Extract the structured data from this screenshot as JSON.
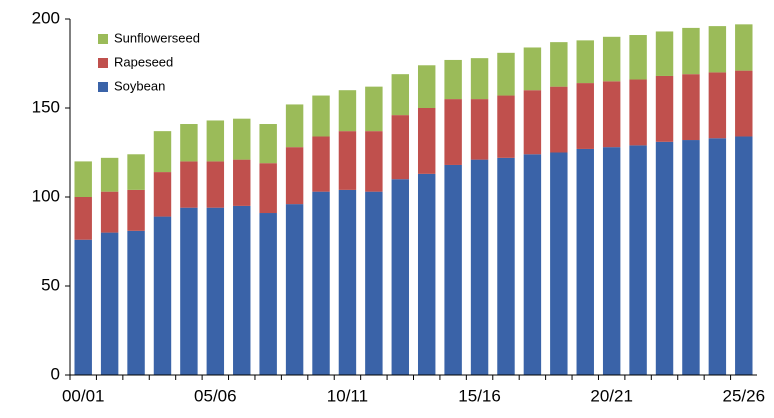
{
  "chart_data": {
    "type": "stacked_bar",
    "categories": [
      "00/01",
      null,
      null,
      null,
      null,
      "05/06",
      null,
      null,
      null,
      null,
      "10/11",
      null,
      null,
      null,
      null,
      "15/16",
      null,
      null,
      null,
      null,
      "20/21",
      null,
      null,
      null,
      null,
      "25/26"
    ],
    "series": [
      {
        "name": "Soybean",
        "color": "#3a63a8",
        "values": [
          76,
          80,
          81,
          89,
          94,
          94,
          95,
          91,
          96,
          103,
          104,
          103,
          110,
          113,
          118,
          121,
          122,
          124,
          125,
          127,
          128,
          129,
          131,
          132,
          133,
          134
        ]
      },
      {
        "name": "Rapeseed",
        "color": "#c0504d",
        "values": [
          24,
          23,
          23,
          25,
          26,
          26,
          26,
          28,
          32,
          31,
          33,
          34,
          36,
          37,
          37,
          34,
          35,
          36,
          37,
          37,
          37,
          37,
          37,
          37,
          37,
          37
        ]
      },
      {
        "name": "Sunflowerseed",
        "color": "#9bbb59",
        "values": [
          20,
          19,
          20,
          23,
          21,
          23,
          23,
          22,
          24,
          23,
          23,
          25,
          23,
          24,
          22,
          23,
          24,
          24,
          25,
          24,
          25,
          25,
          25,
          26,
          26,
          26
        ]
      }
    ],
    "ylim": [
      0,
      200
    ],
    "yticks": [
      0,
      50,
      100,
      150,
      200
    ],
    "legend": "upper left",
    "grid": false
  }
}
